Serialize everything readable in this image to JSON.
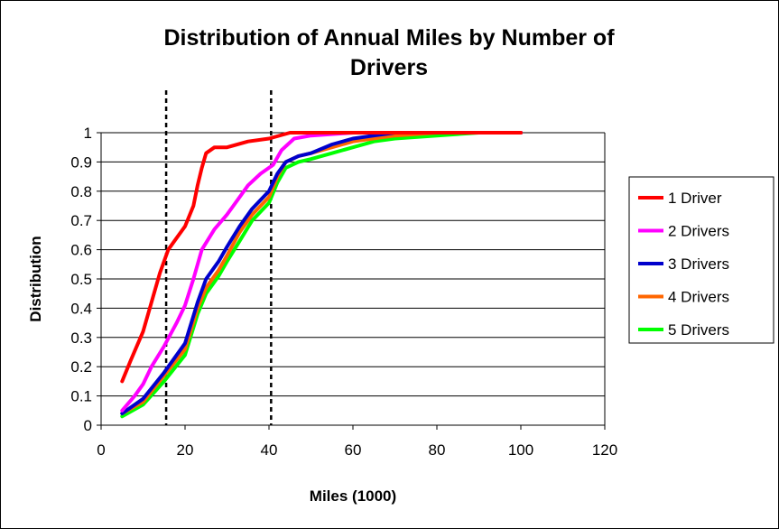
{
  "chart_data": {
    "type": "line",
    "title_line1": "Distribution of Annual Miles by Number of",
    "title_line2": "Drivers",
    "xlabel": "Miles (1000)",
    "ylabel": "Distribution",
    "xlim": [
      0,
      120
    ],
    "ylim": [
      0,
      1
    ],
    "x_ticks": [
      "0",
      "20",
      "40",
      "60",
      "80",
      "100",
      "120"
    ],
    "y_ticks": [
      "0",
      "0.1",
      "0.2",
      "0.3",
      "0.4",
      "0.5",
      "0.6",
      "0.7",
      "0.8",
      "0.9",
      "1"
    ],
    "grid": "horizontal",
    "legend_position": "right",
    "reference_lines_x": [
      15.5,
      40.5
    ],
    "series": [
      {
        "name": "1 Driver",
        "color": "#ff0000",
        "points": [
          [
            5,
            0.15
          ],
          [
            7,
            0.22
          ],
          [
            10,
            0.32
          ],
          [
            12,
            0.42
          ],
          [
            14,
            0.52
          ],
          [
            16,
            0.6
          ],
          [
            18,
            0.64
          ],
          [
            20,
            0.68
          ],
          [
            22,
            0.75
          ],
          [
            23,
            0.82
          ],
          [
            24,
            0.88
          ],
          [
            25,
            0.93
          ],
          [
            27,
            0.95
          ],
          [
            30,
            0.95
          ],
          [
            35,
            0.97
          ],
          [
            40,
            0.98
          ],
          [
            45,
            1.0
          ],
          [
            60,
            1.0
          ],
          [
            80,
            1.0
          ],
          [
            100,
            1.0
          ]
        ]
      },
      {
        "name": "2 Drivers",
        "color": "#ff00ff",
        "points": [
          [
            5,
            0.05
          ],
          [
            8,
            0.1
          ],
          [
            10,
            0.14
          ],
          [
            12,
            0.2
          ],
          [
            15,
            0.27
          ],
          [
            18,
            0.35
          ],
          [
            20,
            0.41
          ],
          [
            22,
            0.5
          ],
          [
            24,
            0.6
          ],
          [
            27,
            0.67
          ],
          [
            30,
            0.72
          ],
          [
            33,
            0.78
          ],
          [
            35,
            0.82
          ],
          [
            38,
            0.86
          ],
          [
            41,
            0.89
          ],
          [
            43,
            0.94
          ],
          [
            46,
            0.98
          ],
          [
            50,
            0.99
          ],
          [
            60,
            1.0
          ],
          [
            80,
            1.0
          ],
          [
            100,
            1.0
          ]
        ]
      },
      {
        "name": "3 Drivers",
        "color": "#0000cc",
        "points": [
          [
            5,
            0.04
          ],
          [
            10,
            0.09
          ],
          [
            15,
            0.18
          ],
          [
            20,
            0.28
          ],
          [
            23,
            0.42
          ],
          [
            25,
            0.5
          ],
          [
            28,
            0.56
          ],
          [
            30,
            0.61
          ],
          [
            33,
            0.68
          ],
          [
            36,
            0.74
          ],
          [
            40,
            0.8
          ],
          [
            42,
            0.86
          ],
          [
            44,
            0.9
          ],
          [
            47,
            0.92
          ],
          [
            50,
            0.93
          ],
          [
            55,
            0.96
          ],
          [
            60,
            0.98
          ],
          [
            65,
            0.99
          ],
          [
            70,
            1.0
          ],
          [
            80,
            1.0
          ],
          [
            100,
            1.0
          ]
        ]
      },
      {
        "name": "4 Drivers",
        "color": "#ff6600",
        "points": [
          [
            5,
            0.04
          ],
          [
            10,
            0.08
          ],
          [
            15,
            0.17
          ],
          [
            20,
            0.26
          ],
          [
            23,
            0.4
          ],
          [
            25,
            0.47
          ],
          [
            28,
            0.53
          ],
          [
            30,
            0.58
          ],
          [
            33,
            0.66
          ],
          [
            36,
            0.72
          ],
          [
            40,
            0.78
          ],
          [
            42,
            0.85
          ],
          [
            44,
            0.9
          ],
          [
            47,
            0.92
          ],
          [
            50,
            0.93
          ],
          [
            55,
            0.95
          ],
          [
            60,
            0.97
          ],
          [
            70,
            0.99
          ],
          [
            80,
            1.0
          ],
          [
            100,
            1.0
          ]
        ]
      },
      {
        "name": "5 Drivers",
        "color": "#00ff00",
        "points": [
          [
            5,
            0.03
          ],
          [
            10,
            0.07
          ],
          [
            15,
            0.15
          ],
          [
            20,
            0.24
          ],
          [
            23,
            0.38
          ],
          [
            25,
            0.45
          ],
          [
            28,
            0.51
          ],
          [
            30,
            0.56
          ],
          [
            33,
            0.63
          ],
          [
            36,
            0.7
          ],
          [
            40,
            0.76
          ],
          [
            42,
            0.83
          ],
          [
            44,
            0.88
          ],
          [
            47,
            0.9
          ],
          [
            50,
            0.91
          ],
          [
            55,
            0.93
          ],
          [
            60,
            0.95
          ],
          [
            65,
            0.97
          ],
          [
            70,
            0.98
          ],
          [
            80,
            0.99
          ],
          [
            90,
            1.0
          ],
          [
            100,
            1.0
          ]
        ]
      }
    ]
  }
}
